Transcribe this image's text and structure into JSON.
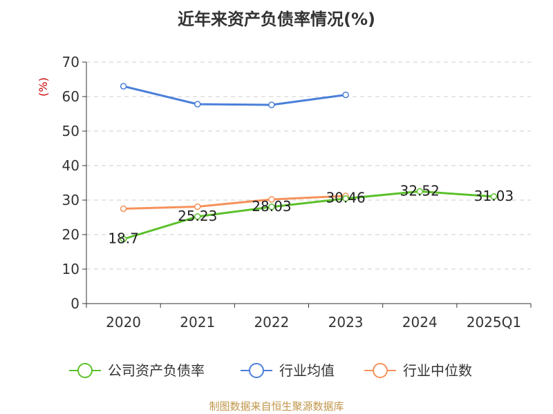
{
  "chart_data": {
    "type": "line",
    "title": "近年来资产负债率情况(%)",
    "ylabel": "(%)",
    "xlabel": "",
    "ylim": [
      0,
      70
    ],
    "yticks": [
      0,
      10,
      20,
      30,
      40,
      50,
      60,
      70
    ],
    "grid": true,
    "legend_position": "bottom",
    "categories": [
      "2020",
      "2021",
      "2022",
      "2023",
      "2024",
      "2025Q1"
    ],
    "series": [
      {
        "name": "公司资产负债率",
        "color": "#5bc12b",
        "show_labels": true,
        "values": [
          18.7,
          25.23,
          28.03,
          30.46,
          32.52,
          31.03
        ]
      },
      {
        "name": "行业均值",
        "color": "#4a7fd9",
        "show_labels": false,
        "values": [
          63.0,
          57.8,
          57.6,
          60.5,
          null,
          null
        ]
      },
      {
        "name": "行业中位数",
        "color": "#f5925a",
        "show_labels": false,
        "values": [
          27.5,
          28.1,
          30.2,
          31.2,
          null,
          null
        ]
      }
    ],
    "source": "制图数据来自恒生聚源数据库"
  }
}
